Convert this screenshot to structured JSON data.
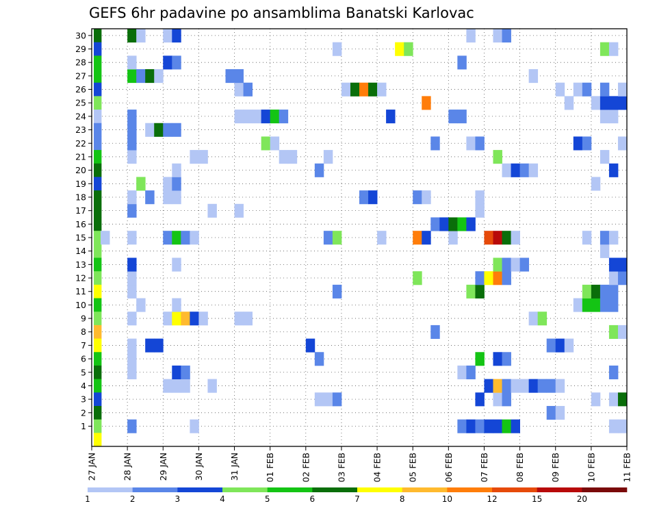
{
  "chart_data": {
    "type": "heatmap",
    "title": "GEFS 6hr padavine po ansamblima Banatski Karlovac",
    "x_tick_labels": [
      "27 JAN",
      "28 JAN",
      "29 JAN",
      "30 JAN",
      "31 JAN",
      "01 FEB",
      "02 FEB",
      "03 FEB",
      "04 FEB",
      "05 FEB",
      "06 FEB",
      "07 FEB",
      "08 FEB",
      "09 FEB",
      "10 FEB",
      "11 FEB"
    ],
    "y_tick_labels": [
      "1",
      "2",
      "3",
      "4",
      "5",
      "6",
      "7",
      "8",
      "9",
      "10",
      "11",
      "12",
      "13",
      "14",
      "15",
      "16",
      "17",
      "18",
      "19",
      "20",
      "21",
      "22",
      "23",
      "24",
      "25",
      "26",
      "27",
      "28",
      "29",
      "30"
    ],
    "xlabel": "",
    "ylabel": "",
    "time_step_hours": 6,
    "grid": "dotted",
    "colorbar": {
      "position": "bottom",
      "levels": [
        1,
        2,
        3,
        4,
        5,
        6,
        7,
        8,
        10,
        12,
        15,
        20
      ],
      "labels": [
        "1",
        "2",
        "3",
        "4",
        "5",
        "6",
        "7",
        "8",
        "10",
        "12",
        "15",
        "20"
      ],
      "colors": [
        "#b3c6f5",
        "#5a86e8",
        "#1446d6",
        "#7fe65a",
        "#14c414",
        "#0a6e0a",
        "#ffff00",
        "#ffba2e",
        "#ff7d0a",
        "#e64a0a",
        "#b80a0a",
        "#7a0a0a"
      ]
    },
    "cells": [
      {
        "t": 0,
        "m": 30,
        "v": 6
      },
      {
        "t": 0,
        "m": 29,
        "v": 3
      },
      {
        "t": 0,
        "m": 28,
        "v": 5
      },
      {
        "t": 0,
        "m": 27,
        "v": 5
      },
      {
        "t": 0,
        "m": 26,
        "v": 3
      },
      {
        "t": 0,
        "m": 25,
        "v": 4
      },
      {
        "t": 0,
        "m": 24,
        "v": 1
      },
      {
        "t": 0,
        "m": 23,
        "v": 2
      },
      {
        "t": 0,
        "m": 22,
        "v": 2
      },
      {
        "t": 0,
        "m": 21,
        "v": 5
      },
      {
        "t": 0,
        "m": 20,
        "v": 6
      },
      {
        "t": 0,
        "m": 19,
        "v": 3
      },
      {
        "t": 0,
        "m": 18,
        "v": 6
      },
      {
        "t": 0,
        "m": 17,
        "v": 6
      },
      {
        "t": 0,
        "m": 16,
        "v": 6
      },
      {
        "t": 0,
        "m": 15,
        "v": 4
      },
      {
        "t": 0,
        "m": 14,
        "v": 4
      },
      {
        "t": 0,
        "m": 13,
        "v": 5
      },
      {
        "t": 0,
        "m": 12,
        "v": 4
      },
      {
        "t": 0,
        "m": 11,
        "v": 7
      },
      {
        "t": 0,
        "m": 10,
        "v": 5
      },
      {
        "t": 0,
        "m": 9,
        "v": 4
      },
      {
        "t": 0,
        "m": 8,
        "v": 8
      },
      {
        "t": 0,
        "m": 7,
        "v": 7
      },
      {
        "t": 0,
        "m": 6,
        "v": 5
      },
      {
        "t": 0,
        "m": 5,
        "v": 6
      },
      {
        "t": 0,
        "m": 4,
        "v": 5
      },
      {
        "t": 0,
        "m": 3,
        "v": 3
      },
      {
        "t": 0,
        "m": 2,
        "v": 6
      },
      {
        "t": 0,
        "m": 1,
        "v": 4
      },
      {
        "t": 0,
        "m": 0,
        "v": 7
      },
      {
        "t": 1,
        "m": 15,
        "v": 1
      },
      {
        "t": 4,
        "m": 1,
        "v": 2
      },
      {
        "t": 4,
        "m": 5,
        "v": 1
      },
      {
        "t": 4,
        "m": 6,
        "v": 1
      },
      {
        "t": 4,
        "m": 7,
        "v": 1
      },
      {
        "t": 4,
        "m": 9,
        "v": 1
      },
      {
        "t": 4,
        "m": 11,
        "v": 1
      },
      {
        "t": 4,
        "m": 12,
        "v": 1
      },
      {
        "t": 4,
        "m": 13,
        "v": 3
      },
      {
        "t": 4,
        "m": 15,
        "v": 1
      },
      {
        "t": 4,
        "m": 17,
        "v": 2
      },
      {
        "t": 4,
        "m": 18,
        "v": 1
      },
      {
        "t": 4,
        "m": 21,
        "v": 1
      },
      {
        "t": 4,
        "m": 22,
        "v": 2
      },
      {
        "t": 4,
        "m": 23,
        "v": 2
      },
      {
        "t": 4,
        "m": 24,
        "v": 2
      },
      {
        "t": 4,
        "m": 27,
        "v": 5
      },
      {
        "t": 4,
        "m": 28,
        "v": 1
      },
      {
        "t": 4,
        "m": 30,
        "v": 6
      },
      {
        "t": 5,
        "m": 10,
        "v": 1
      },
      {
        "t": 5,
        "m": 19,
        "v": 4
      },
      {
        "t": 5,
        "m": 27,
        "v": 2
      },
      {
        "t": 5,
        "m": 30,
        "v": 1
      },
      {
        "t": 6,
        "m": 7,
        "v": 3
      },
      {
        "t": 6,
        "m": 18,
        "v": 2
      },
      {
        "t": 6,
        "m": 23,
        "v": 1
      },
      {
        "t": 6,
        "m": 27,
        "v": 6
      },
      {
        "t": 7,
        "m": 7,
        "v": 3
      },
      {
        "t": 7,
        "m": 23,
        "v": 6
      },
      {
        "t": 7,
        "m": 27,
        "v": 1
      },
      {
        "t": 8,
        "m": 4,
        "v": 1
      },
      {
        "t": 8,
        "m": 9,
        "v": 1
      },
      {
        "t": 8,
        "m": 15,
        "v": 2
      },
      {
        "t": 8,
        "m": 18,
        "v": 1
      },
      {
        "t": 8,
        "m": 19,
        "v": 1
      },
      {
        "t": 8,
        "m": 23,
        "v": 2
      },
      {
        "t": 8,
        "m": 28,
        "v": 3
      },
      {
        "t": 8,
        "m": 30,
        "v": 1
      },
      {
        "t": 9,
        "m": 4,
        "v": 1
      },
      {
        "t": 9,
        "m": 5,
        "v": 3
      },
      {
        "t": 9,
        "m": 9,
        "v": 7
      },
      {
        "t": 9,
        "m": 10,
        "v": 1
      },
      {
        "t": 9,
        "m": 13,
        "v": 1
      },
      {
        "t": 9,
        "m": 15,
        "v": 5
      },
      {
        "t": 9,
        "m": 18,
        "v": 1
      },
      {
        "t": 9,
        "m": 19,
        "v": 2
      },
      {
        "t": 9,
        "m": 20,
        "v": 1
      },
      {
        "t": 9,
        "m": 23,
        "v": 2
      },
      {
        "t": 9,
        "m": 28,
        "v": 2
      },
      {
        "t": 9,
        "m": 30,
        "v": 3
      },
      {
        "t": 10,
        "m": 4,
        "v": 1
      },
      {
        "t": 10,
        "m": 5,
        "v": 2
      },
      {
        "t": 10,
        "m": 9,
        "v": 8
      },
      {
        "t": 10,
        "m": 15,
        "v": 2
      },
      {
        "t": 11,
        "m": 1,
        "v": 1
      },
      {
        "t": 11,
        "m": 9,
        "v": 3
      },
      {
        "t": 11,
        "m": 15,
        "v": 1
      },
      {
        "t": 11,
        "m": 21,
        "v": 1
      },
      {
        "t": 12,
        "m": 9,
        "v": 1
      },
      {
        "t": 12,
        "m": 21,
        "v": 1
      },
      {
        "t": 13,
        "m": 4,
        "v": 1
      },
      {
        "t": 13,
        "m": 17,
        "v": 1
      },
      {
        "t": 15,
        "m": 27,
        "v": 2
      },
      {
        "t": 16,
        "m": 9,
        "v": 1
      },
      {
        "t": 16,
        "m": 17,
        "v": 1
      },
      {
        "t": 16,
        "m": 24,
        "v": 1
      },
      {
        "t": 16,
        "m": 26,
        "v": 1
      },
      {
        "t": 16,
        "m": 27,
        "v": 2
      },
      {
        "t": 17,
        "m": 9,
        "v": 1
      },
      {
        "t": 17,
        "m": 24,
        "v": 1
      },
      {
        "t": 17,
        "m": 26,
        "v": 2
      },
      {
        "t": 18,
        "m": 24,
        "v": 1
      },
      {
        "t": 19,
        "m": 22,
        "v": 4
      },
      {
        "t": 19,
        "m": 24,
        "v": 3
      },
      {
        "t": 20,
        "m": 22,
        "v": 1
      },
      {
        "t": 20,
        "m": 24,
        "v": 5
      },
      {
        "t": 21,
        "m": 21,
        "v": 1
      },
      {
        "t": 21,
        "m": 24,
        "v": 2
      },
      {
        "t": 22,
        "m": 21,
        "v": 1
      },
      {
        "t": 24,
        "m": 7,
        "v": 3
      },
      {
        "t": 25,
        "m": 3,
        "v": 1
      },
      {
        "t": 25,
        "m": 6,
        "v": 2
      },
      {
        "t": 25,
        "m": 20,
        "v": 2
      },
      {
        "t": 26,
        "m": 3,
        "v": 1
      },
      {
        "t": 26,
        "m": 15,
        "v": 2
      },
      {
        "t": 26,
        "m": 21,
        "v": 1
      },
      {
        "t": 27,
        "m": 3,
        "v": 2
      },
      {
        "t": 27,
        "m": 11,
        "v": 2
      },
      {
        "t": 27,
        "m": 15,
        "v": 4
      },
      {
        "t": 27,
        "m": 29,
        "v": 1
      },
      {
        "t": 28,
        "m": 26,
        "v": 1
      },
      {
        "t": 29,
        "m": 26,
        "v": 6
      },
      {
        "t": 30,
        "m": 18,
        "v": 2
      },
      {
        "t": 30,
        "m": 26,
        "v": 10
      },
      {
        "t": 31,
        "m": 18,
        "v": 3
      },
      {
        "t": 31,
        "m": 26,
        "v": 6
      },
      {
        "t": 32,
        "m": 15,
        "v": 1
      },
      {
        "t": 32,
        "m": 26,
        "v": 1
      },
      {
        "t": 33,
        "m": 24,
        "v": 3
      },
      {
        "t": 34,
        "m": 29,
        "v": 7
      },
      {
        "t": 35,
        "m": 29,
        "v": 4
      },
      {
        "t": 36,
        "m": 12,
        "v": 4
      },
      {
        "t": 36,
        "m": 15,
        "v": 10
      },
      {
        "t": 36,
        "m": 18,
        "v": 2
      },
      {
        "t": 37,
        "m": 15,
        "v": 3
      },
      {
        "t": 37,
        "m": 18,
        "v": 1
      },
      {
        "t": 37,
        "m": 25,
        "v": 10
      },
      {
        "t": 38,
        "m": 8,
        "v": 2
      },
      {
        "t": 38,
        "m": 16,
        "v": 2
      },
      {
        "t": 38,
        "m": 22,
        "v": 2
      },
      {
        "t": 39,
        "m": 16,
        "v": 3
      },
      {
        "t": 40,
        "m": 15,
        "v": 1
      },
      {
        "t": 40,
        "m": 16,
        "v": 6
      },
      {
        "t": 40,
        "m": 24,
        "v": 2
      },
      {
        "t": 41,
        "m": 1,
        "v": 2
      },
      {
        "t": 41,
        "m": 5,
        "v": 1
      },
      {
        "t": 41,
        "m": 16,
        "v": 5
      },
      {
        "t": 41,
        "m": 24,
        "v": 2
      },
      {
        "t": 41,
        "m": 28,
        "v": 2
      },
      {
        "t": 42,
        "m": 1,
        "v": 3
      },
      {
        "t": 42,
        "m": 5,
        "v": 2
      },
      {
        "t": 42,
        "m": 11,
        "v": 4
      },
      {
        "t": 42,
        "m": 16,
        "v": 3
      },
      {
        "t": 42,
        "m": 22,
        "v": 1
      },
      {
        "t": 42,
        "m": 30,
        "v": 1
      },
      {
        "t": 43,
        "m": 1,
        "v": 2
      },
      {
        "t": 43,
        "m": 3,
        "v": 3
      },
      {
        "t": 43,
        "m": 6,
        "v": 5
      },
      {
        "t": 43,
        "m": 11,
        "v": 6
      },
      {
        "t": 43,
        "m": 12,
        "v": 2
      },
      {
        "t": 43,
        "m": 17,
        "v": 1
      },
      {
        "t": 43,
        "m": 18,
        "v": 1
      },
      {
        "t": 43,
        "m": 22,
        "v": 2
      },
      {
        "t": 44,
        "m": 1,
        "v": 3
      },
      {
        "t": 44,
        "m": 4,
        "v": 3
      },
      {
        "t": 44,
        "m": 12,
        "v": 7
      },
      {
        "t": 44,
        "m": 15,
        "v": 12
      },
      {
        "t": 45,
        "m": 1,
        "v": 3
      },
      {
        "t": 45,
        "m": 3,
        "v": 1
      },
      {
        "t": 45,
        "m": 4,
        "v": 8
      },
      {
        "t": 45,
        "m": 6,
        "v": 3
      },
      {
        "t": 45,
        "m": 12,
        "v": 10
      },
      {
        "t": 45,
        "m": 13,
        "v": 4
      },
      {
        "t": 45,
        "m": 15,
        "v": 15
      },
      {
        "t": 45,
        "m": 21,
        "v": 4
      },
      {
        "t": 45,
        "m": 30,
        "v": 1
      },
      {
        "t": 46,
        "m": 1,
        "v": 5
      },
      {
        "t": 46,
        "m": 3,
        "v": 2
      },
      {
        "t": 46,
        "m": 4,
        "v": 2
      },
      {
        "t": 46,
        "m": 6,
        "v": 2
      },
      {
        "t": 46,
        "m": 12,
        "v": 2
      },
      {
        "t": 46,
        "m": 13,
        "v": 2
      },
      {
        "t": 46,
        "m": 15,
        "v": 6
      },
      {
        "t": 46,
        "m": 20,
        "v": 1
      },
      {
        "t": 46,
        "m": 30,
        "v": 2
      },
      {
        "t": 47,
        "m": 1,
        "v": 3
      },
      {
        "t": 47,
        "m": 4,
        "v": 1
      },
      {
        "t": 47,
        "m": 13,
        "v": 1
      },
      {
        "t": 47,
        "m": 15,
        "v": 1
      },
      {
        "t": 47,
        "m": 20,
        "v": 3
      },
      {
        "t": 48,
        "m": 4,
        "v": 1
      },
      {
        "t": 48,
        "m": 13,
        "v": 2
      },
      {
        "t": 48,
        "m": 20,
        "v": 2
      },
      {
        "t": 49,
        "m": 4,
        "v": 3
      },
      {
        "t": 49,
        "m": 9,
        "v": 1
      },
      {
        "t": 49,
        "m": 20,
        "v": 1
      },
      {
        "t": 49,
        "m": 27,
        "v": 1
      },
      {
        "t": 50,
        "m": 4,
        "v": 2
      },
      {
        "t": 50,
        "m": 9,
        "v": 4
      },
      {
        "t": 51,
        "m": 2,
        "v": 2
      },
      {
        "t": 51,
        "m": 4,
        "v": 2
      },
      {
        "t": 51,
        "m": 7,
        "v": 2
      },
      {
        "t": 52,
        "m": 2,
        "v": 1
      },
      {
        "t": 52,
        "m": 4,
        "v": 1
      },
      {
        "t": 52,
        "m": 7,
        "v": 3
      },
      {
        "t": 52,
        "m": 26,
        "v": 1
      },
      {
        "t": 53,
        "m": 7,
        "v": 1
      },
      {
        "t": 53,
        "m": 25,
        "v": 1
      },
      {
        "t": 54,
        "m": 10,
        "v": 1
      },
      {
        "t": 54,
        "m": 22,
        "v": 3
      },
      {
        "t": 54,
        "m": 26,
        "v": 1
      },
      {
        "t": 55,
        "m": 10,
        "v": 5
      },
      {
        "t": 55,
        "m": 11,
        "v": 4
      },
      {
        "t": 55,
        "m": 15,
        "v": 1
      },
      {
        "t": 55,
        "m": 22,
        "v": 2
      },
      {
        "t": 55,
        "m": 26,
        "v": 2
      },
      {
        "t": 56,
        "m": 3,
        "v": 1
      },
      {
        "t": 56,
        "m": 10,
        "v": 5
      },
      {
        "t": 56,
        "m": 11,
        "v": 6
      },
      {
        "t": 56,
        "m": 19,
        "v": 1
      },
      {
        "t": 56,
        "m": 25,
        "v": 1
      },
      {
        "t": 57,
        "m": 10,
        "v": 2
      },
      {
        "t": 57,
        "m": 11,
        "v": 2
      },
      {
        "t": 57,
        "m": 14,
        "v": 1
      },
      {
        "t": 57,
        "m": 15,
        "v": 2
      },
      {
        "t": 57,
        "m": 21,
        "v": 1
      },
      {
        "t": 57,
        "m": 24,
        "v": 1
      },
      {
        "t": 57,
        "m": 25,
        "v": 3
      },
      {
        "t": 57,
        "m": 26,
        "v": 2
      },
      {
        "t": 57,
        "m": 29,
        "v": 4
      },
      {
        "t": 58,
        "m": 1,
        "v": 1
      },
      {
        "t": 58,
        "m": 3,
        "v": 1
      },
      {
        "t": 58,
        "m": 5,
        "v": 2
      },
      {
        "t": 58,
        "m": 8,
        "v": 4
      },
      {
        "t": 58,
        "m": 10,
        "v": 2
      },
      {
        "t": 58,
        "m": 11,
        "v": 2
      },
      {
        "t": 58,
        "m": 12,
        "v": 1
      },
      {
        "t": 58,
        "m": 13,
        "v": 3
      },
      {
        "t": 58,
        "m": 15,
        "v": 1
      },
      {
        "t": 58,
        "m": 20,
        "v": 3
      },
      {
        "t": 58,
        "m": 24,
        "v": 1
      },
      {
        "t": 58,
        "m": 25,
        "v": 3
      },
      {
        "t": 58,
        "m": 29,
        "v": 1
      },
      {
        "t": 59,
        "m": 1,
        "v": 1
      },
      {
        "t": 59,
        "m": 3,
        "v": 6
      },
      {
        "t": 59,
        "m": 8,
        "v": 1
      },
      {
        "t": 59,
        "m": 12,
        "v": 2
      },
      {
        "t": 59,
        "m": 13,
        "v": 3
      },
      {
        "t": 59,
        "m": 22,
        "v": 1
      },
      {
        "t": 59,
        "m": 25,
        "v": 3
      },
      {
        "t": 59,
        "m": 26,
        "v": 1
      }
    ]
  }
}
